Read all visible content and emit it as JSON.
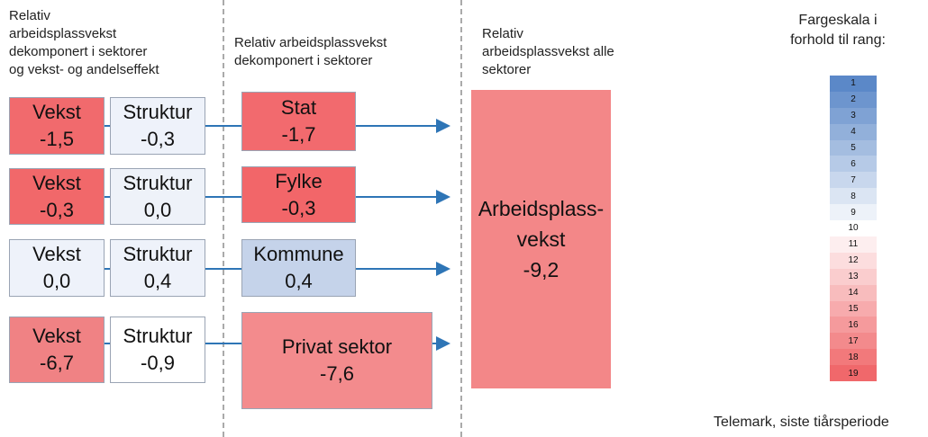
{
  "headers": [
    [
      "Relativ",
      "arbeidsplassvekst",
      "dekomponert i sektorer",
      "og vekst- og andelseffekt"
    ],
    [
      "Relativ arbeidsplassvekst",
      "dekomponert i sektorer"
    ],
    [
      "Relativ",
      "arbeidsplassvekst alle",
      "sektorer"
    ]
  ],
  "rows": [
    {
      "growth": {
        "label": "Vekst",
        "value": "-1,5",
        "color": "#f16a6d"
      },
      "structure": {
        "label": "Struktur",
        "value": "-0,3",
        "color": "#eef2fa"
      },
      "sector": {
        "label": "Stat",
        "value": "-1,7",
        "color": "#f26a6e"
      }
    },
    {
      "growth": {
        "label": "Vekst",
        "value": "-0,3",
        "color": "#f1686a"
      },
      "structure": {
        "label": "Struktur",
        "value": "0,0",
        "color": "#eef2f9"
      },
      "sector": {
        "label": "Fylke",
        "value": "-0,3",
        "color": "#f26669"
      }
    },
    {
      "growth": {
        "label": "Vekst",
        "value": "0,0",
        "color": "#eef2fa"
      },
      "structure": {
        "label": "Struktur",
        "value": "0,4",
        "color": "#eef2fa"
      },
      "sector": {
        "label": "Kommune",
        "value": "0,4",
        "color": "#c5d3ea"
      }
    },
    {
      "growth": {
        "label": "Vekst",
        "value": "-6,7",
        "color": "#f08284"
      },
      "structure": {
        "label": "Struktur",
        "value": "-0,9",
        "color": "#ffffff"
      },
      "sector": {
        "label": "Privat sektor",
        "value": "-7,6",
        "color": "#f38b8d"
      }
    }
  ],
  "total": {
    "lines": [
      "Arbeidsplass-",
      "vekst"
    ],
    "value": "-9,2",
    "color": "#f38788"
  },
  "scale": {
    "title": [
      "Fargeskala i",
      "forhold til rang:"
    ],
    "ranks": [
      "1",
      "2",
      "3",
      "4",
      "5",
      "6",
      "7",
      "8",
      "9",
      "10",
      "11",
      "12",
      "13",
      "14",
      "15",
      "16",
      "17",
      "18",
      "19"
    ]
  },
  "footer": "Telemark, siste tiårsperiode"
}
